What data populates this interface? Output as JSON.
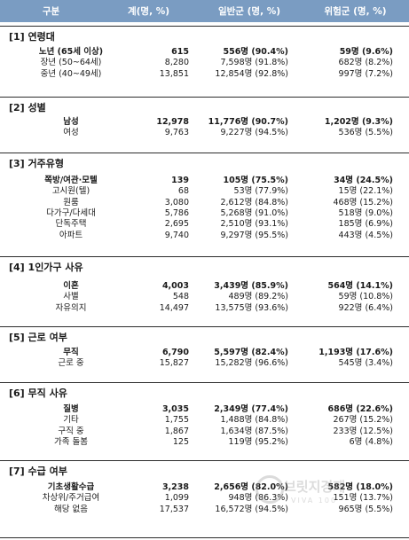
{
  "header": {
    "col0": "구분",
    "col1": "계(명, %)",
    "col2": "일반군 (명, %)",
    "col3": "위험군 (명, %)"
  },
  "sections": [
    {
      "title": "[1] 연령대",
      "rows": [
        {
          "label": "노년 (65세 이상)",
          "total": "615",
          "general": "556명 (90.4%)",
          "risk": "59명 (9.6%)",
          "bold": true
        },
        {
          "label": "장년 (50~64세)",
          "total": "8,280",
          "general": "7,598명 (91.8%)",
          "risk": "682명 (8.2%)",
          "bold": false
        },
        {
          "label": "중년 (40~49세)",
          "total": "13,851",
          "general": "12,854명 (92.8%)",
          "risk": "997명 (7.2%)",
          "bold": false
        }
      ]
    },
    {
      "title": "[2] 성별",
      "rows": [
        {
          "label": "남성",
          "total": "12,978",
          "general": "11,776명 (90.7%)",
          "risk": "1,202명 (9.3%)",
          "bold": true
        },
        {
          "label": "여성",
          "total": "9,763",
          "general": "9,227명 (94.5%)",
          "risk": "536명 (5.5%)",
          "bold": false
        }
      ]
    },
    {
      "title": "[3] 거주유형",
      "rows": [
        {
          "label": "쪽방/여관·모텔",
          "total": "139",
          "general": "105명 (75.5%)",
          "risk": "34명 (24.5%)",
          "bold": true
        },
        {
          "label": "고시원(텔)",
          "total": "68",
          "general": "53명 (77.9%)",
          "risk": "15명 (22.1%)",
          "bold": false
        },
        {
          "label": "원룸",
          "total": "3,080",
          "general": "2,612명 (84.8%)",
          "risk": "468명 (15.2%)",
          "bold": false
        },
        {
          "label": "다가구/다세대",
          "total": "5,786",
          "general": "5,268명 (91.0%)",
          "risk": "518명 (9.0%)",
          "bold": false
        },
        {
          "label": "단독주택",
          "total": "2,695",
          "general": "2,510명 (93.1%)",
          "risk": "185명 (6.9%)",
          "bold": false
        },
        {
          "label": "아파트",
          "total": "9,740",
          "general": "9,297명 (95.5%)",
          "risk": "443명 (4.5%)",
          "bold": false
        }
      ]
    },
    {
      "title": "[4] 1인가구 사유",
      "rows": [
        {
          "label": "이혼",
          "total": "4,003",
          "general": "3,439명 (85.9%)",
          "risk": "564명 (14.1%)",
          "bold": true
        },
        {
          "label": "사별",
          "total": "548",
          "general": "489명 (89.2%)",
          "risk": "59명 (10.8%)",
          "bold": false
        },
        {
          "label": "자유의지",
          "total": "14,497",
          "general": "13,575명 (93.6%)",
          "risk": "922명 (6.4%)",
          "bold": false
        }
      ]
    },
    {
      "title": "[5] 근로 여부",
      "rows": [
        {
          "label": "무직",
          "total": "6,790",
          "general": "5,597명 (82.4%)",
          "risk": "1,193명 (17.6%)",
          "bold": true
        },
        {
          "label": "근로 중",
          "total": "15,827",
          "general": "15,282명 (96.6%)",
          "risk": "545명 (3.4%)",
          "bold": false
        }
      ]
    },
    {
      "title": "[6] 무직 사유",
      "rows": [
        {
          "label": "질병",
          "total": "3,035",
          "general": "2,349명 (77.4%)",
          "risk": "686명 (22.6%)",
          "bold": true
        },
        {
          "label": "기타",
          "total": "1,755",
          "general": "1,488명 (84.8%)",
          "risk": "267명 (15.2%)",
          "bold": false
        },
        {
          "label": "구직 중",
          "total": "1,867",
          "general": "1,634명 (87.5%)",
          "risk": "233명 (12.5%)",
          "bold": false
        },
        {
          "label": "가족 돌봄",
          "total": "125",
          "general": "119명 (95.2%)",
          "risk": "6명 (4.8%)",
          "bold": false
        }
      ]
    },
    {
      "title": "[7] 수급 여부",
      "rows": [
        {
          "label": "기초생활수급",
          "total": "3,238",
          "general": "2,656명 (82.0%)",
          "risk": "582명 (18.0%)",
          "bold": true
        },
        {
          "label": "차상위/주거급여",
          "total": "1,099",
          "general": "948명 (86.3%)",
          "risk": "151명 (13.7%)",
          "bold": false
        },
        {
          "label": "해당 없음",
          "total": "17,537",
          "general": "16,572명 (94.5%)",
          "risk": "965명 (5.5%)",
          "bold": false
        }
      ]
    }
  ],
  "watermark": {
    "text": "브릿지경제",
    "sub": "VIVA 100"
  }
}
